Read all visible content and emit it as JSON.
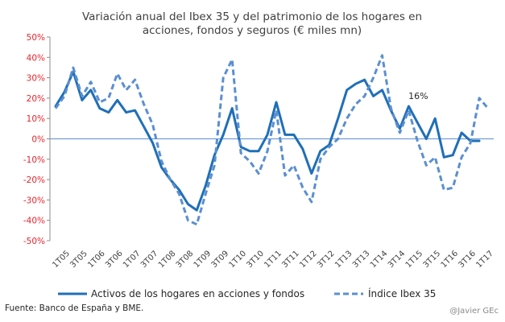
{
  "chart_data": {
    "type": "line",
    "title": [
      "Variación anual del Ibex 35 y del patrimonio de los hogares en",
      "acciones, fondos y seguros (€ miles mn)"
    ],
    "xlabel": "",
    "ylabel": "",
    "ylim": [
      -50,
      50
    ],
    "ytick_labels": [
      "50%",
      "40%",
      "30%",
      "20%",
      "10%",
      "0%",
      "-10%",
      "-20%",
      "-30%",
      "-40%",
      "-50%"
    ],
    "xtick_labels": [
      "1T05",
      "3T05",
      "1T06",
      "3T06",
      "1T07",
      "3T07",
      "1T08",
      "3T08",
      "1T09",
      "3T09",
      "1T10",
      "3T10",
      "1T11",
      "3T11",
      "1T12",
      "3T12",
      "1T13",
      "3T13",
      "1T14",
      "3T14",
      "1T15",
      "3T15",
      "1T16",
      "3T16",
      "1T17"
    ],
    "series": [
      {
        "name": "Activos de los hogares en acciones y fondos",
        "style": "solid",
        "color": "#1f6fb7",
        "values": [
          16,
          23,
          33,
          19,
          24,
          15,
          13,
          19,
          13,
          14,
          6,
          -2,
          -14,
          -20,
          -25,
          -32,
          -35,
          -23,
          -8,
          2,
          15,
          -4,
          -6,
          -6,
          2,
          18,
          2,
          2,
          -5,
          -17,
          -6,
          -3,
          10,
          24,
          27,
          29,
          21,
          24,
          14,
          5,
          16,
          8,
          0,
          10,
          -9,
          -8,
          3,
          -1,
          -1
        ]
      },
      {
        "name": "Índice Ibex 35",
        "style": "dashed",
        "color": "#5b8fd0",
        "values": [
          15,
          21,
          35,
          21,
          28,
          18,
          20,
          32,
          24,
          29,
          17,
          7,
          -11,
          -20,
          -27,
          -40,
          -42,
          -27,
          -13,
          30,
          39,
          -7,
          -11,
          -17,
          -6,
          14,
          -18,
          -13,
          -24,
          -31,
          -10,
          -4,
          0,
          10,
          17,
          21,
          30,
          41,
          15,
          3,
          14,
          -1,
          -13,
          -9,
          -25,
          -24,
          -9,
          -2,
          20,
          15
        ]
      }
    ],
    "annotations": [
      {
        "text": "16%",
        "series": 0,
        "point": 40
      }
    ],
    "legend": "bottom",
    "grid": false
  },
  "source_note": "Fuente: Banco de España y BME.",
  "credit": "@Javier GEc"
}
